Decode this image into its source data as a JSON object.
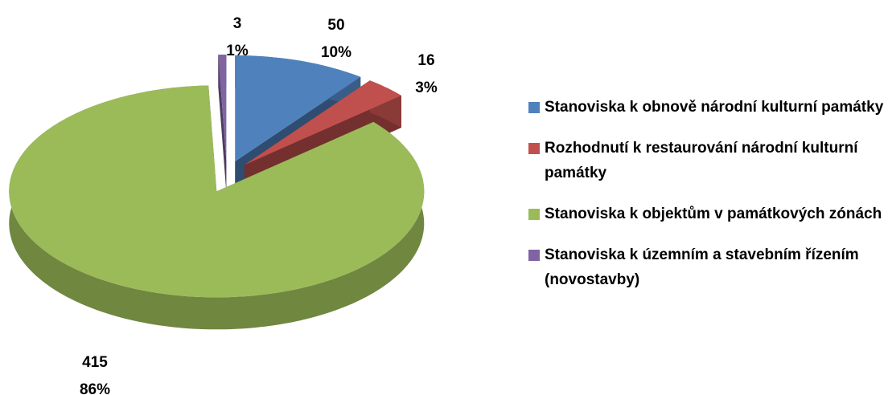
{
  "chart_data": {
    "type": "pie",
    "categories": [
      "Stanoviska k obnově národní kulturní památky",
      "Rozhodnutí k restaurování národní kulturní památky",
      "Stanoviska k objektům v památkových zónách",
      "Stanoviska k územním a stavebním řízením (novostavby)"
    ],
    "values": [
      50,
      16,
      415,
      3
    ],
    "percentages": [
      {
        "value": 10,
        "label": "10%"
      },
      {
        "value": 3,
        "label": "3%"
      },
      {
        "value": 86,
        "label": "86%"
      },
      {
        "value": 1,
        "label": "1%"
      }
    ],
    "colors": [
      "#4f81bd",
      "#c0504d",
      "#9bbb59",
      "#8064a2"
    ],
    "legend": "right"
  }
}
